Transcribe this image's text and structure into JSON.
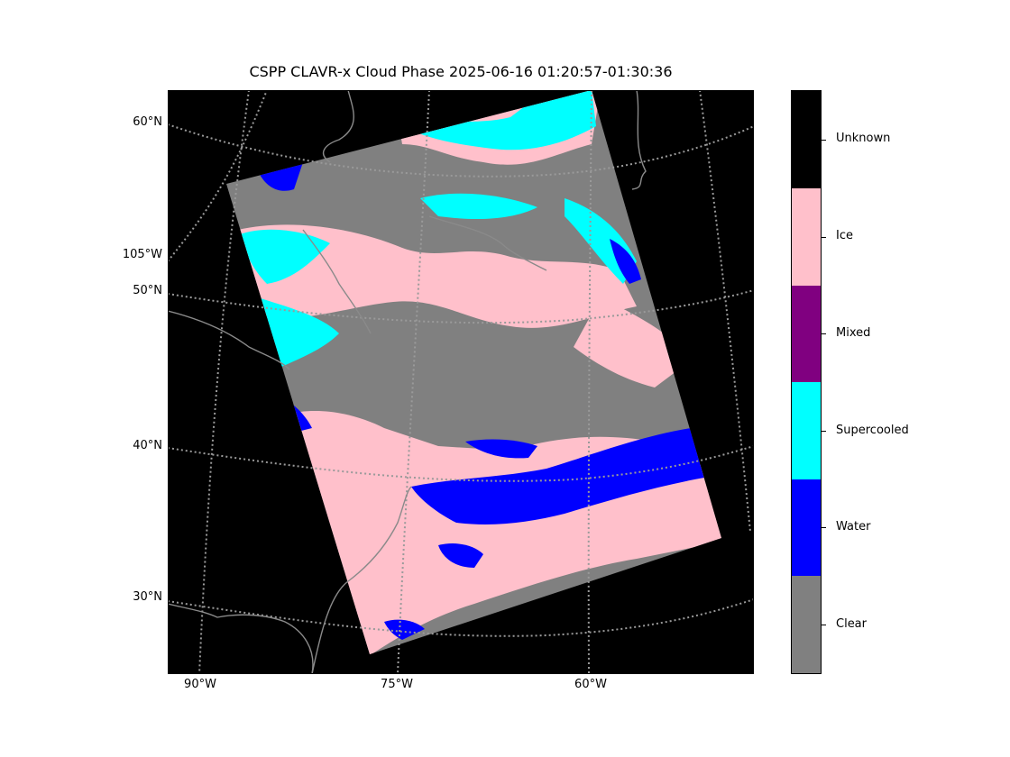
{
  "title": "CSPP CLAVR-x Cloud Phase 2025-06-16 01:20:57-01:30:36",
  "map": {
    "lat_labels": [
      "60°N",
      "105°W",
      "50°N",
      "40°N",
      "30°N"
    ],
    "lon_labels": [
      "90°W",
      "75°W",
      "60°W"
    ]
  },
  "legend": {
    "categories": [
      {
        "label": "Unknown",
        "color": "#000000"
      },
      {
        "label": "Ice",
        "color": "#ffc0cb"
      },
      {
        "label": "Mixed",
        "color": "#800080"
      },
      {
        "label": "Supercooled",
        "color": "#00ffff"
      },
      {
        "label": "Water",
        "color": "#0000ff"
      },
      {
        "label": "Clear",
        "color": "#808080"
      }
    ]
  }
}
